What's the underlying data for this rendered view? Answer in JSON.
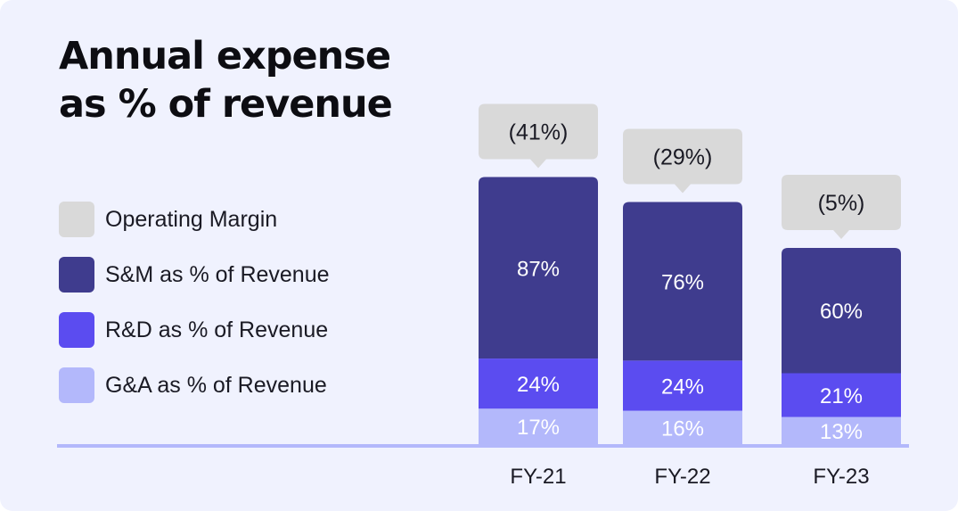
{
  "title_line1": "Annual expense",
  "title_line2": "as % of revenue",
  "legend": [
    {
      "label": "Operating Margin",
      "color": "#d9d9d9"
    },
    {
      "label": "S&M as % of Revenue",
      "color": "#3f3c8e"
    },
    {
      "label": "R&D as % of Revenue",
      "color": "#5b4cf0"
    },
    {
      "label": "G&A as % of Revenue",
      "color": "#b3b8fb"
    }
  ],
  "chart_data": {
    "type": "bar",
    "stacked": true,
    "title": "Annual expense as % of revenue",
    "categories": [
      "FY-21",
      "FY-22",
      "FY-23"
    ],
    "series": [
      {
        "name": "G&A as % of Revenue",
        "values": [
          17,
          16,
          13
        ],
        "labels": [
          "17%",
          "16%",
          "13%"
        ],
        "color": "#b3b8fb",
        "text_color": "#ffffff"
      },
      {
        "name": "R&D as % of Revenue",
        "values": [
          24,
          24,
          21
        ],
        "labels": [
          "24%",
          "24%",
          "21%"
        ],
        "color": "#5b4cf0",
        "text_color": "#ffffff"
      },
      {
        "name": "S&M as % of Revenue",
        "values": [
          87,
          76,
          60
        ],
        "labels": [
          "87%",
          "76%",
          "60%"
        ],
        "color": "#3f3c8e",
        "text_color": "#ffffff"
      }
    ],
    "operating_margin": {
      "name": "Operating Margin",
      "values": [
        -41,
        -29,
        -5
      ],
      "labels": [
        "(41%)",
        "(29%)",
        "(5%)"
      ],
      "color": "#d9d9d9"
    },
    "axis_color": "#b3b8fb",
    "xlabel": "",
    "ylabel": ""
  }
}
